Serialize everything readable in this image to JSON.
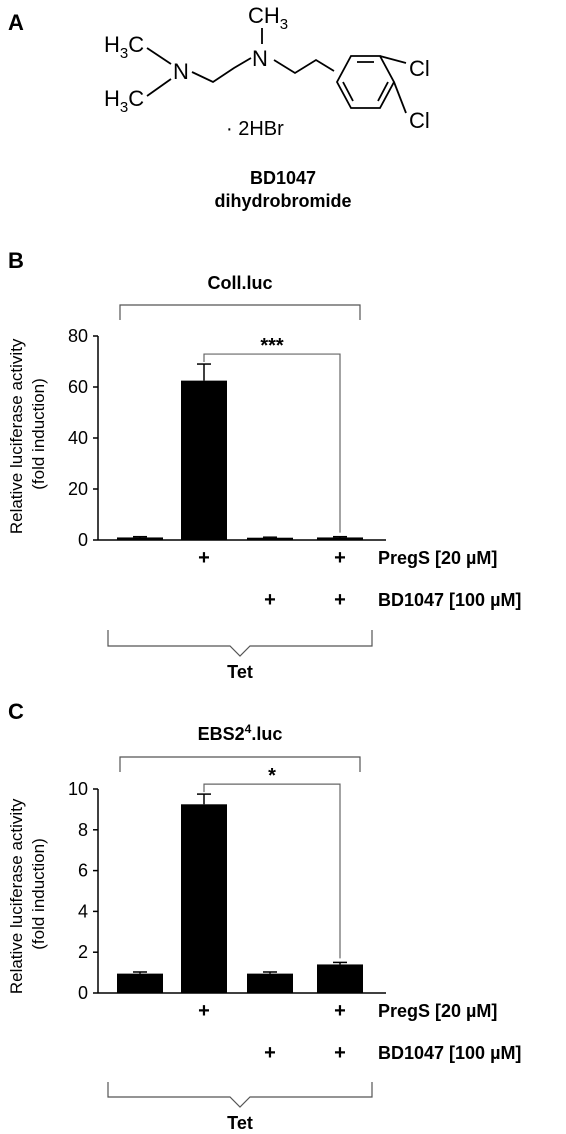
{
  "panel_a": {
    "letter": "A",
    "compound_name": "BD1047",
    "compound_salt": "dihydrobromide",
    "structure": {
      "methyl_n_top": "CH",
      "methyl_sub": "3",
      "h3c_upper": "H",
      "h3c_upper_sub": "3",
      "h3c_upper_c": "C",
      "h3c_lower": "H",
      "h3c_lower_sub": "3",
      "h3c_lower_c": "C",
      "n_left": "N",
      "n_right": "N",
      "salt": "· 2HBr",
      "cl_upper": "Cl",
      "cl_lower": "Cl"
    }
  },
  "chart_data": [
    {
      "panel": "B",
      "type": "bar",
      "title": "Coll.luc",
      "ylabel": "Relative luciferase activity\n(fold induction)",
      "ylim": [
        0,
        80
      ],
      "yticks": [
        "0",
        "20",
        "40",
        "60",
        "80"
      ],
      "values": [
        1.0,
        62.5,
        0.9,
        1.0
      ],
      "errors": [
        0.3,
        6.5,
        0.2,
        0.3
      ],
      "treatments": [
        {
          "label": "PregS [20 µM]",
          "marks": [
            "",
            "+",
            "",
            "+"
          ]
        },
        {
          "label": "BD1047 [100 µM]",
          "marks": [
            "",
            "",
            "+",
            "+"
          ]
        }
      ],
      "group_label": "Tet",
      "significance": {
        "from": 1,
        "to": 3,
        "label": "***"
      }
    },
    {
      "panel": "C",
      "type": "bar",
      "title_main": "EBS2",
      "title_sup": "4",
      "title_end": ".luc",
      "ylabel": "Relative luciferase activity\n(fold induction)",
      "ylim": [
        0,
        10
      ],
      "yticks": [
        "0",
        "2",
        "4",
        "6",
        "8",
        "10"
      ],
      "values": [
        0.95,
        9.25,
        0.95,
        1.4
      ],
      "errors": [
        0.08,
        0.5,
        0.08,
        0.1
      ],
      "treatments": [
        {
          "label": "PregS [20 µM]",
          "marks": [
            "",
            "+",
            "",
            "+"
          ]
        },
        {
          "label": "BD1047 [100 µM]",
          "marks": [
            "",
            "",
            "+",
            "+"
          ]
        }
      ],
      "group_label": "Tet",
      "significance": {
        "from": 1,
        "to": 3,
        "label": "*"
      }
    }
  ]
}
